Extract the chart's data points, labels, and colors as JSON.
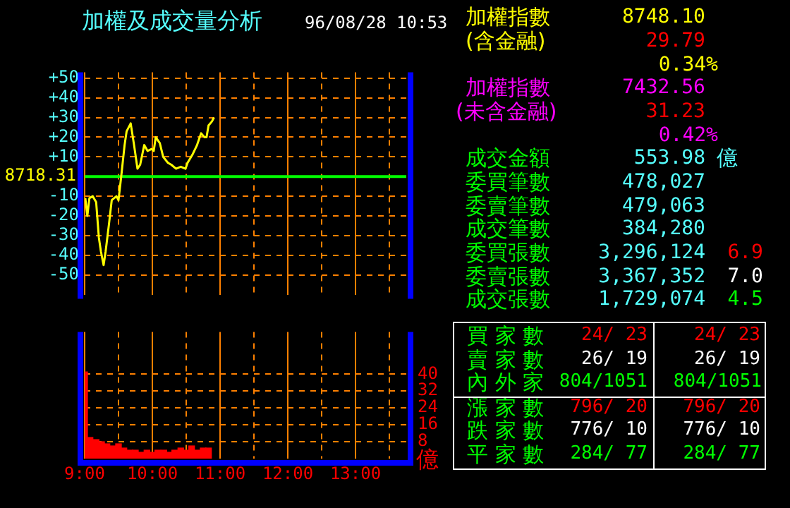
{
  "chart_data": [
    {
      "type": "line",
      "title": "加權及成交量分析",
      "subtitle": "96/08/28 10:53",
      "x": [
        9.01,
        9.04,
        9.07,
        9.12,
        9.17,
        9.21,
        9.24,
        9.28,
        9.31,
        9.36,
        9.4,
        9.47,
        9.5,
        9.54,
        9.59,
        9.62,
        9.68,
        9.73,
        9.78,
        9.82,
        9.88,
        9.93,
        9.99,
        10.02,
        10.05,
        10.11,
        10.16,
        10.23,
        10.28,
        10.35,
        10.42,
        10.49,
        10.52,
        10.59,
        10.66,
        10.72,
        10.77,
        10.8,
        10.83,
        10.88,
        10.91
      ],
      "series": [
        {
          "color": "#ffff00",
          "values": [
            -11,
            -20,
            -11,
            -10,
            -13,
            -31,
            -38,
            -45,
            -38,
            -24,
            -12,
            -10,
            -12,
            0,
            16,
            23,
            27,
            16,
            4,
            6,
            16,
            13,
            14,
            13,
            20,
            17,
            10,
            7,
            6,
            4,
            5,
            4,
            7,
            11,
            16,
            22,
            20,
            20,
            26,
            28,
            30
          ]
        }
      ],
      "xlim": [
        9,
        13.75
      ],
      "xticks": [
        9,
        {
          "value": 9.5,
          "label": null
        },
        10,
        {
          "value": 10.5,
          "label": null
        },
        11,
        {
          "value": 11.5,
          "label": null
        },
        12,
        {
          "value": 12.5,
          "label": null
        },
        13,
        {
          "value": 13.5,
          "label": null
        }
      ],
      "ylim": [
        -60,
        53
      ],
      "yticks": [
        {
          "value": 50,
          "label": "+50"
        },
        {
          "value": 40,
          "label": "+40"
        },
        {
          "value": 30,
          "label": "+30"
        },
        {
          "value": 20,
          "label": "+20"
        },
        {
          "value": 10,
          "label": "+10"
        },
        -10,
        -20,
        -30,
        -40,
        -50
      ],
      "ref_lines": [
        {
          "axis": "y",
          "value": 0,
          "color": "#00ff00"
        }
      ],
      "annotations": [
        "8718.31"
      ],
      "grid": true,
      "tick_labels": "y"
    },
    {
      "type": "bar",
      "x": [
        9,
        9.08,
        9.17,
        9.25,
        9.33,
        9.42,
        9.5,
        9.58,
        9.67,
        9.75,
        9.83,
        9.92,
        10,
        10.08,
        10.17,
        10.25,
        10.33,
        10.42,
        10.5,
        10.58,
        10.67,
        10.75,
        10.83
      ],
      "series": [
        {
          "color": "#ff0000",
          "axis": "y2",
          "values": [
            41,
            10,
            9,
            8,
            7,
            6,
            7,
            5,
            4,
            4,
            3,
            4,
            3,
            4,
            4,
            3,
            4,
            5,
            4,
            6,
            4,
            5,
            5
          ]
        }
      ],
      "xlim": [
        9,
        13.75
      ],
      "xticks": [
        {
          "value": 9,
          "label": "9:00"
        },
        {
          "value": 9.5,
          "label": null
        },
        {
          "value": 10,
          "label": "10:00"
        },
        {
          "value": 10.5,
          "label": null
        },
        {
          "value": 11,
          "label": "11:00"
        },
        {
          "value": 11.5,
          "label": null
        },
        {
          "value": 12,
          "label": "12:00"
        },
        {
          "value": 12.5,
          "label": null
        },
        {
          "value": 13,
          "label": "13:00"
        },
        {
          "value": 13.5,
          "label": null
        }
      ],
      "y2lim": [
        0,
        60
      ],
      "y2ticks": [
        8,
        16,
        24,
        32,
        40
      ],
      "y2label": "億",
      "grid": true
    },
    {
      "type": "other",
      "annotations": [
        "加權指數",
        "8748.10",
        "(含金融)",
        "29.79",
        "0.34%",
        "加權指數",
        "7432.56",
        "(未含金融)",
        "31.23",
        "0.42%",
        "成交金額",
        "553.98",
        "億",
        "委買筆數",
        "478,027",
        "委賣筆數",
        "479,063",
        "成交筆數",
        "384,280",
        "委買張數",
        "3,296,124",
        "6.9",
        "委賣張數",
        "3,367,352",
        "7.0",
        "成交張數",
        "1,729,074",
        "4.5",
        "買 家 數",
        "24/ 23",
        "24/ 23",
        "賣 家 數",
        "26/ 19",
        "26/ 19",
        "內 外 家",
        "804/1051",
        "804/1051",
        "漲 家 數",
        "796/ 20",
        "796/ 20",
        "跌 家 數",
        "776/ 10",
        "776/ 10",
        "平 家 數",
        "284/ 77",
        "284/ 77"
      ]
    }
  ]
}
